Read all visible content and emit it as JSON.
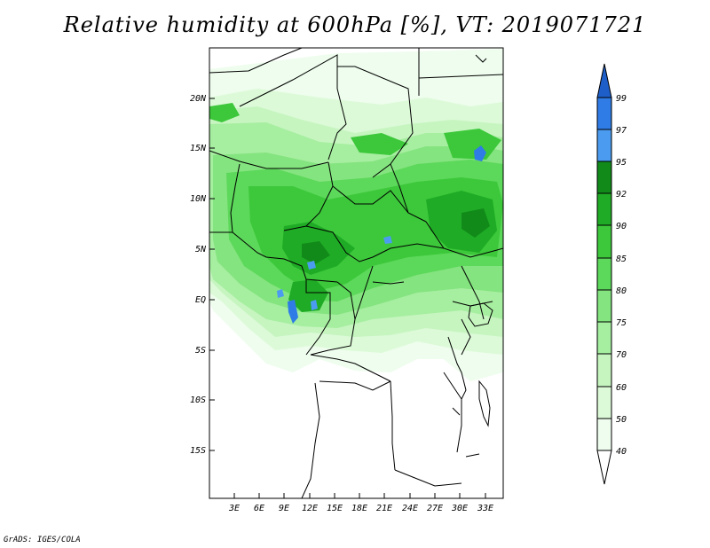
{
  "title": "Relative humidity at 600hPa [%], VT: 2019071721",
  "footer": "GrADS: IGES/COLA",
  "map": {
    "lat_labels": [
      "20N",
      "15N",
      "10N",
      "5N",
      "EQ",
      "5S",
      "10S",
      "15S"
    ],
    "lon_labels": [
      "3E",
      "6E",
      "9E",
      "12E",
      "15E",
      "18E",
      "21E",
      "24E",
      "27E",
      "30E",
      "33E"
    ]
  },
  "colorbar": {
    "levels": [
      "99",
      "97",
      "95",
      "92",
      "90",
      "85",
      "80",
      "75",
      "70",
      "60",
      "50",
      "40"
    ],
    "colors": {
      "above_99": "#1e5ec8",
      "97_99": "#2f7ce6",
      "95_97": "#4b9cf0",
      "92_95": "#118a1a",
      "90_92": "#1fab25",
      "85_90": "#3cc83a",
      "80_85": "#5cd85a",
      "75_80": "#84e47f",
      "70_75": "#a6eea0",
      "60_70": "#c6f5c0",
      "50_60": "#dcfad8",
      "40_50": "#eefded",
      "below_40": "#ffffff"
    }
  }
}
